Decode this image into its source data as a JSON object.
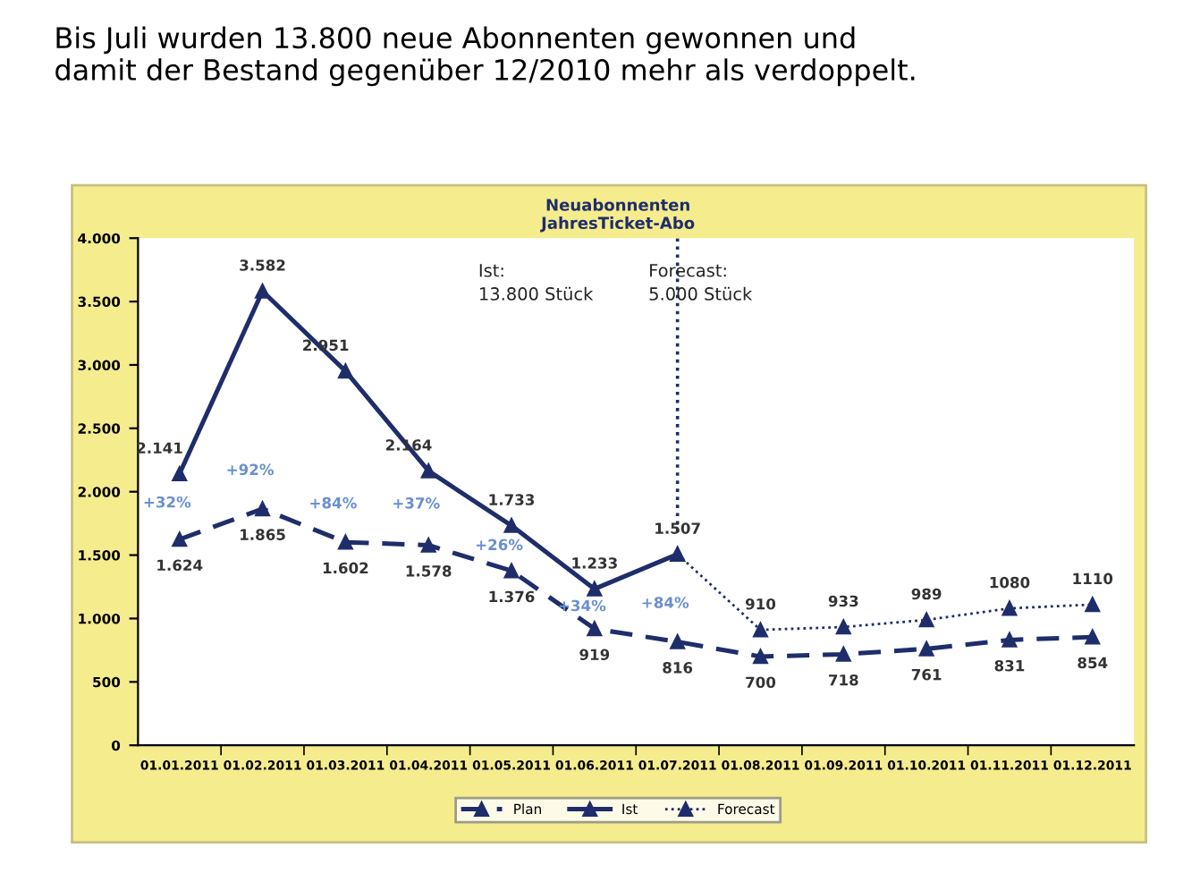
{
  "chart_data": {
    "type": "line",
    "title": "Neuabonnenten\nJahresTicket-Abo",
    "subtitle": "Bis Juli wurden 13.800 neue Abonnenten gewonnen und\ndamit der Bestand gegenüber 12/2010 mehr als verdoppelt.",
    "categories": [
      "01.01.2011",
      "01.02.2011",
      "01.03.2011",
      "01.04.2011",
      "01.05.2011",
      "01.06.2011",
      "01.07.2011",
      "01.08.2011",
      "01.09.2011",
      "01.10.2011",
      "01.11.2011",
      "01.12.2011"
    ],
    "series": [
      {
        "name": "Plan",
        "color": "#1f2d6b",
        "line_style": "dashed",
        "values": [
          1624,
          1865,
          1602,
          1578,
          1376,
          919,
          816,
          700,
          718,
          761,
          831,
          854
        ],
        "value_labels": [
          "1.624",
          "1.865",
          "1.602",
          "1.578",
          "1.376",
          "919",
          "816",
          "700",
          "718",
          "761",
          "831",
          "854"
        ]
      },
      {
        "name": "Ist",
        "color": "#1f2d6b",
        "line_style": "solid",
        "values": [
          2141,
          3582,
          2951,
          2164,
          1733,
          1233,
          1507,
          null,
          null,
          null,
          null,
          null
        ],
        "value_labels": [
          "2.141",
          "3.582",
          "2.951",
          "2.164",
          "1.733",
          "1.233",
          "1.507",
          null,
          null,
          null,
          null,
          null
        ]
      },
      {
        "name": "Forecast",
        "color": "#1f2d6b",
        "line_style": "dotted",
        "values": [
          null,
          null,
          null,
          null,
          null,
          null,
          1507,
          910,
          933,
          989,
          1080,
          1110
        ],
        "value_labels": [
          null,
          null,
          null,
          null,
          null,
          null,
          null,
          "910",
          "933",
          "989",
          "1080",
          "1110"
        ]
      }
    ],
    "marker": "triangle",
    "legend": "bottom",
    "grid": false,
    "ylim": [
      0,
      4000
    ],
    "yticks": [
      0,
      {
        "value": 500,
        "label": "500"
      },
      {
        "value": 1000,
        "label": "1.000"
      },
      {
        "value": 1500,
        "label": "1.500"
      },
      {
        "value": 2000,
        "label": "2.000"
      },
      {
        "value": 2500,
        "label": "2.500"
      },
      {
        "value": 3000,
        "label": "3.000"
      },
      {
        "value": 3500,
        "label": "3.500"
      },
      {
        "value": 4000,
        "label": "4.000"
      }
    ],
    "ref_lines": [
      {
        "axis": "x",
        "value": "01.07.2011",
        "color": "#1f2d6b",
        "line_style": "dotted"
      }
    ],
    "annotations": [
      "+32%",
      "+92%",
      "+84%",
      "+37%",
      "+26%",
      "+34%",
      "+84%",
      "Ist:\n13.800 Stück",
      "Forecast:\n5.000 Stück"
    ]
  }
}
